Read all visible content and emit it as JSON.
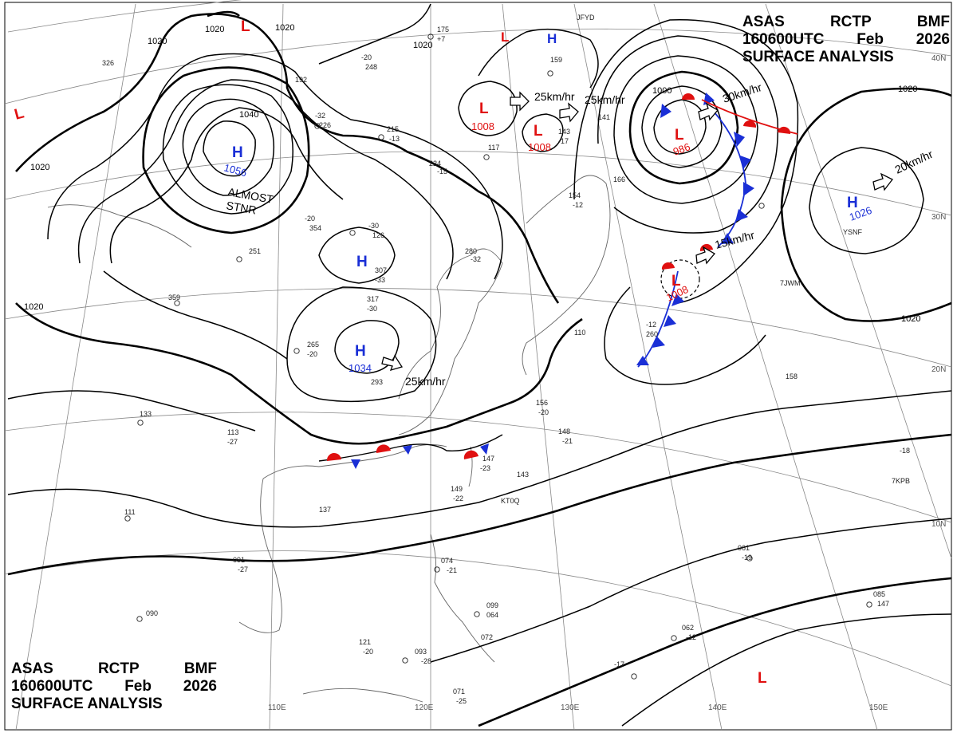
{
  "header_top": {
    "line1": [
      "ASAS",
      "RCTP",
      "BMF"
    ],
    "line2": [
      "160600UTC",
      "Feb",
      "2026"
    ],
    "line3": "SURFACE ANALYSIS"
  },
  "header_bottom": {
    "line1": [
      "ASAS",
      "RCTP",
      "BMF"
    ],
    "line2": [
      "160600UTC",
      "Feb",
      "2026"
    ],
    "line3": "SURFACE ANALYSIS"
  },
  "colors": {
    "high": "#1a2fd6",
    "low": "#e01010",
    "cold_front": "#1a2fd6",
    "warm_front": "#e01010",
    "isobar": "#000000",
    "grid": "#888888",
    "coast": "#666666"
  },
  "latitude_labels": [
    "40N",
    "30N",
    "20N",
    "10N"
  ],
  "longitude_labels": [
    "110E",
    "120E",
    "130E",
    "140E",
    "150E"
  ],
  "isobar_labels": [
    "1020",
    "1020",
    "1020",
    "1020",
    "1020",
    "1020",
    "1020",
    "1040",
    "1000",
    "1020"
  ],
  "pressure_centers": [
    {
      "type": "H",
      "value": "1056"
    },
    {
      "type": "H",
      "value": ""
    },
    {
      "type": "H",
      "value": "1034"
    },
    {
      "type": "H",
      "value": "1026"
    },
    {
      "type": "H",
      "value": ""
    },
    {
      "type": "L",
      "value": "1008"
    },
    {
      "type": "L",
      "value": "1008"
    },
    {
      "type": "L",
      "value": "986"
    },
    {
      "type": "L",
      "value": "1008"
    },
    {
      "type": "L",
      "value": ""
    },
    {
      "type": "L",
      "value": ""
    },
    {
      "type": "L",
      "value": ""
    },
    {
      "type": "L",
      "value": ""
    }
  ],
  "motion_labels": [
    "25km/hr",
    "25km/hr",
    "30km/hr",
    "15km/hr",
    "20km/hr",
    "25km/hr"
  ],
  "notes": [
    "ALMOST",
    "STNR"
  ],
  "station_reports": [
    "175",
    "+7",
    "215",
    "-13",
    "224",
    "-15",
    "117",
    "143",
    "-17",
    "154",
    "-12",
    "280",
    "-32",
    "307",
    "-33",
    "317",
    "-30",
    "265",
    "-20",
    "293",
    "156",
    "-20",
    "148",
    "-21",
    "147",
    "-23",
    "149",
    "-22",
    "143",
    "158",
    "133",
    "113",
    "-27",
    "111",
    "137",
    "091",
    "-27",
    "090",
    "121",
    "-20",
    "093",
    "-28",
    "071",
    "-25",
    "074",
    "-21",
    "099",
    "064",
    "072",
    "-17",
    "061",
    "-19",
    "062",
    "-12",
    "085",
    "147",
    "-18",
    "110",
    "-12",
    "260",
    "-20",
    "248",
    "-32",
    "226",
    "192",
    "326",
    "251",
    "359",
    "-20",
    "354",
    "-30",
    "126",
    "159",
    "141",
    "166",
    "JFYD",
    "KT0Q",
    "7KPB",
    "YSNF",
    "7JWM"
  ]
}
